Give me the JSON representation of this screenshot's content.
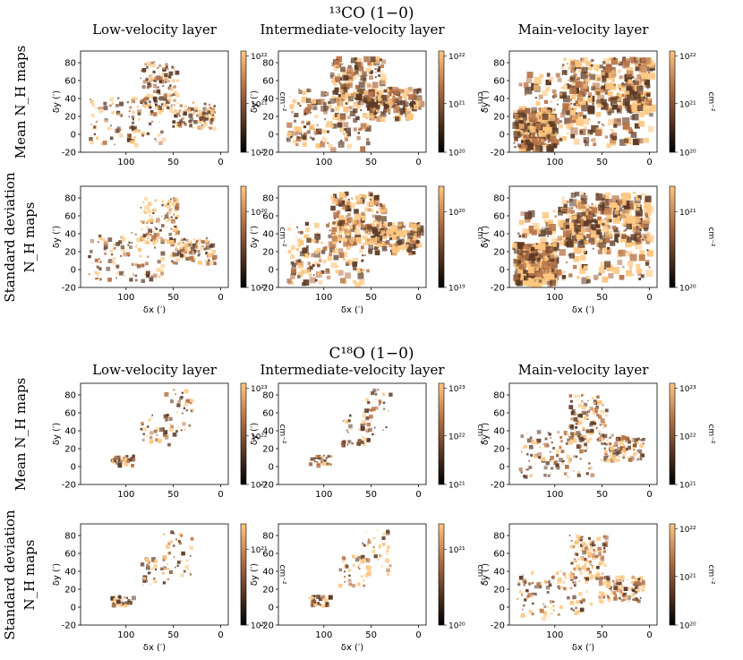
{
  "figure": {
    "sections": [
      {
        "molecule_label": "¹³CO (1−0)",
        "column_titles": [
          "Low-velocity layer",
          "Intermediate-velocity layer",
          "Main-velocity layer"
        ],
        "row_labels": [
          {
            "lines": [
              "Mean N_H maps"
            ]
          },
          {
            "lines": [
              "Standard deviation",
              "N_H maps"
            ]
          }
        ]
      },
      {
        "molecule_label": "C¹⁸O (1−0)",
        "column_titles": [
          "Low-velocity layer",
          "Intermediate-velocity layer",
          "Main-velocity layer"
        ],
        "row_labels": [
          {
            "lines": [
              "Mean N_H maps"
            ]
          },
          {
            "lines": [
              "Standard deviation",
              "N_H maps"
            ]
          }
        ]
      }
    ],
    "axis": {
      "xlabel": "δx (′)",
      "ylabel": "δy (′)",
      "colorbar_label": "cm⁻²"
    }
  },
  "chart_data": [
    {
      "type": "heatmap",
      "panel": "13CO mean N_H, low-velocity layer",
      "xlim": [
        148,
        -8
      ],
      "ylim": [
        -20,
        93
      ],
      "xticks": [
        100,
        50,
        0
      ],
      "yticks": [
        80,
        60,
        40,
        20,
        0,
        -20
      ],
      "colorbar": {
        "log": true,
        "range": [
          1e+20,
          4e+22
        ],
        "ticks": [
          "10²²",
          "10²¹",
          "10²⁰"
        ]
      },
      "coverage": "sparse"
    },
    {
      "type": "heatmap",
      "panel": "13CO mean N_H, intermediate-velocity layer",
      "xlim": [
        148,
        -8
      ],
      "ylim": [
        -20,
        93
      ],
      "xticks": [
        100,
        50,
        0
      ],
      "yticks": [
        80,
        60,
        40,
        20,
        0,
        -20
      ],
      "colorbar": {
        "log": true,
        "range": [
          1e+20,
          4e+22
        ],
        "ticks": [
          "10²²",
          "10²¹",
          "10²⁰"
        ]
      },
      "coverage": "medium"
    },
    {
      "type": "heatmap",
      "panel": "13CO mean N_H, main-velocity layer",
      "xlim": [
        148,
        -8
      ],
      "ylim": [
        -20,
        93
      ],
      "xticks": [
        100,
        50,
        0
      ],
      "yticks": [
        80,
        60,
        40,
        20,
        0,
        -20
      ],
      "colorbar": {
        "log": true,
        "range": [
          1e+20,
          4e+22
        ],
        "ticks": [
          "10²²",
          "10²¹",
          "10²⁰"
        ]
      },
      "coverage": "dense"
    },
    {
      "type": "heatmap",
      "panel": "13CO std N_H, low-velocity layer",
      "xlim": [
        148,
        -8
      ],
      "ylim": [
        -20,
        93
      ],
      "xticks": [
        100,
        50,
        0
      ],
      "yticks": [
        80,
        60,
        40,
        20,
        0,
        -20
      ],
      "colorbar": {
        "log": true,
        "range": [
          1e+19,
          4e+20
        ],
        "ticks": [
          "10²⁰",
          "10¹⁹"
        ]
      },
      "coverage": "sparse"
    },
    {
      "type": "heatmap",
      "panel": "13CO std N_H, intermediate-velocity layer",
      "xlim": [
        148,
        -8
      ],
      "ylim": [
        -20,
        93
      ],
      "xticks": [
        100,
        50,
        0
      ],
      "yticks": [
        80,
        60,
        40,
        20,
        0,
        -20
      ],
      "colorbar": {
        "log": true,
        "range": [
          1e+19,
          4e+20
        ],
        "ticks": [
          "10²⁰",
          "10¹⁹"
        ]
      },
      "coverage": "medium"
    },
    {
      "type": "heatmap",
      "panel": "13CO std N_H, main-velocity layer",
      "xlim": [
        148,
        -8
      ],
      "ylim": [
        -20,
        93
      ],
      "xticks": [
        100,
        50,
        0
      ],
      "yticks": [
        80,
        60,
        40,
        20,
        0,
        -20
      ],
      "colorbar": {
        "log": true,
        "range": [
          6e+19,
          1e+21
        ],
        "ticks": [
          "10²¹",
          "10²⁰"
        ]
      },
      "coverage": "dense"
    },
    {
      "type": "heatmap",
      "panel": "C18O mean N_H, low-velocity layer",
      "xlim": [
        148,
        -8
      ],
      "ylim": [
        -20,
        93
      ],
      "xticks": [
        100,
        50,
        0
      ],
      "yticks": [
        80,
        60,
        40,
        20,
        0,
        -20
      ],
      "colorbar": {
        "log": true,
        "range": [
          1e+21,
          1e+23
        ],
        "ticks": [
          "10²³",
          "10²²",
          "10²¹"
        ]
      },
      "coverage": "very sparse"
    },
    {
      "type": "heatmap",
      "panel": "C18O mean N_H, intermediate-velocity layer",
      "xlim": [
        148,
        -8
      ],
      "ylim": [
        -20,
        93
      ],
      "xticks": [
        100,
        50,
        0
      ],
      "yticks": [
        80,
        60,
        40,
        20,
        0,
        -20
      ],
      "colorbar": {
        "log": true,
        "range": [
          1e+21,
          1e+23
        ],
        "ticks": [
          "10²³",
          "10²²",
          "10²¹"
        ]
      },
      "coverage": "very sparse"
    },
    {
      "type": "heatmap",
      "panel": "C18O mean N_H, main-velocity layer",
      "xlim": [
        148,
        -8
      ],
      "ylim": [
        -20,
        93
      ],
      "xticks": [
        100,
        50,
        0
      ],
      "yticks": [
        80,
        60,
        40,
        20,
        0,
        -20
      ],
      "colorbar": {
        "log": true,
        "range": [
          1e+21,
          1e+23
        ],
        "ticks": [
          "10²³",
          "10²²",
          "10²¹"
        ]
      },
      "coverage": "sparse"
    },
    {
      "type": "heatmap",
      "panel": "C18O std N_H, low-velocity layer",
      "xlim": [
        148,
        -8
      ],
      "ylim": [
        -20,
        93
      ],
      "xticks": [
        100,
        50,
        0
      ],
      "yticks": [
        80,
        60,
        40,
        20,
        0,
        -20
      ],
      "colorbar": {
        "log": true,
        "range": [
          1e+20,
          1e+21
        ],
        "ticks": [
          "10²¹",
          "10²⁰"
        ]
      },
      "coverage": "very sparse"
    },
    {
      "type": "heatmap",
      "panel": "C18O std N_H, intermediate-velocity layer",
      "xlim": [
        148,
        -8
      ],
      "ylim": [
        -20,
        93
      ],
      "xticks": [
        100,
        50,
        0
      ],
      "yticks": [
        80,
        60,
        40,
        20,
        0,
        -20
      ],
      "colorbar": {
        "log": true,
        "range": [
          1e+20,
          1e+21
        ],
        "ticks": [
          "10²¹",
          "10²⁰"
        ]
      },
      "coverage": "very sparse"
    },
    {
      "type": "heatmap",
      "panel": "C18O std N_H, main-velocity layer",
      "xlim": [
        148,
        -8
      ],
      "ylim": [
        -20,
        93
      ],
      "xticks": [
        100,
        50,
        0
      ],
      "yticks": [
        80,
        60,
        40,
        20,
        0,
        -20
      ],
      "colorbar": {
        "log": true,
        "range": [
          1e+20,
          1e+22
        ],
        "ticks": [
          "10²²",
          "10²¹",
          "10²⁰"
        ]
      },
      "coverage": "sparse"
    }
  ],
  "colors": {
    "colormap": "copper",
    "colormap_stops": [
      "#000000",
      "#5c3a25",
      "#b8754a",
      "#ffc77f"
    ],
    "axis": "#000000",
    "background": "#ffffff"
  }
}
